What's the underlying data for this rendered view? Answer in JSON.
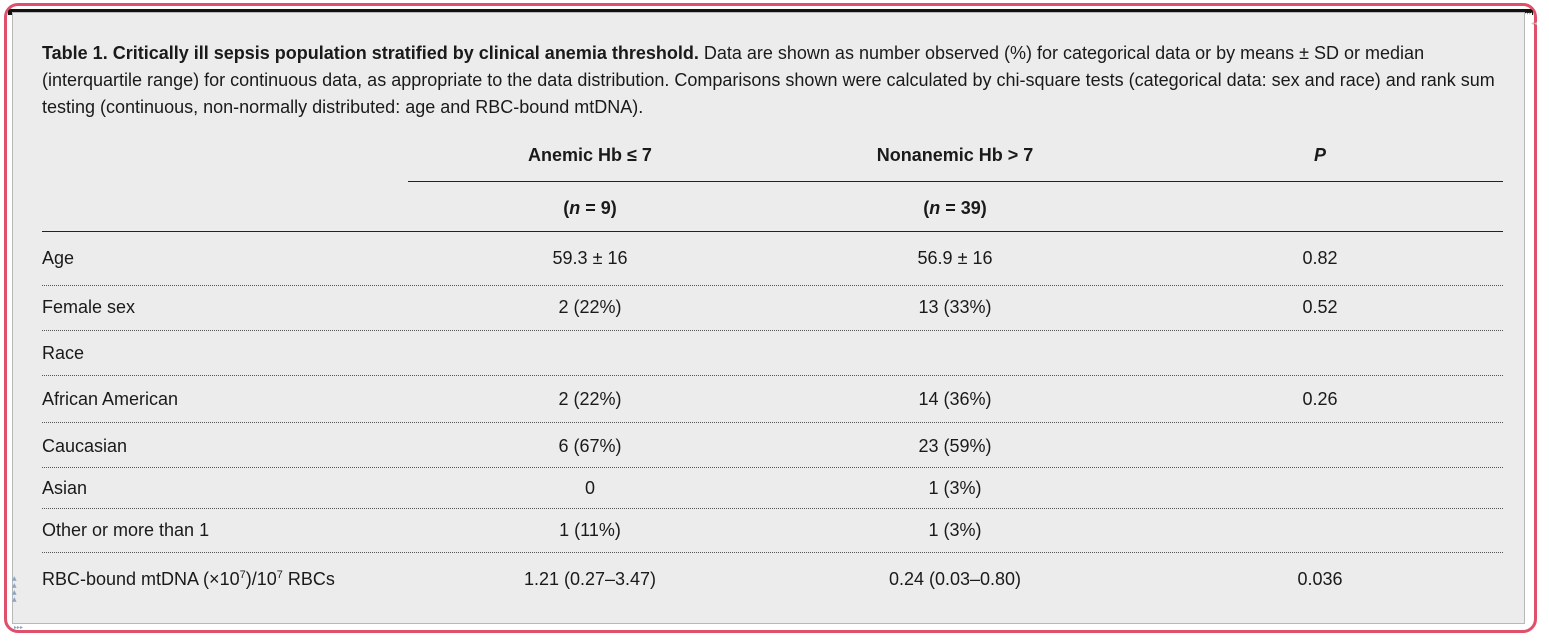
{
  "caption": {
    "title": "Table 1. Critically ill sepsis population stratified by clinical anemia threshold.",
    "body": "Data are shown as number observed (%) for categorical data or by means ± SD or median (interquartile range) for continuous data, as appropriate to the data distribution. Comparisons shown were calculated by chi-square tests (categorical data: sex and race) and rank sum testing (continuous, non-normally distributed: age and RBC-bound mtDNA)."
  },
  "headers": {
    "anemic": "Anemic Hb ≤ 7",
    "nonanemic": "Nonanemic Hb > 7",
    "p": "P",
    "anemic_n_label": "n",
    "anemic_n_value": " = 9)",
    "nonanemic_n_label": "n",
    "nonanemic_n_value": " = 39)",
    "paren_open": "("
  },
  "rows": [
    {
      "label": "Age",
      "anemic": "59.3 ± 16",
      "nonanemic": "56.9 ± 16",
      "p": "0.82"
    },
    {
      "label": "Female sex",
      "anemic": "2 (22%)",
      "nonanemic": "13 (33%)",
      "p": "0.52"
    },
    {
      "label": "Race",
      "anemic": "",
      "nonanemic": "",
      "p": ""
    },
    {
      "label": "African American",
      "anemic": "2 (22%)",
      "nonanemic": "14 (36%)",
      "p": "0.26"
    },
    {
      "label": "Caucasian",
      "anemic": "6 (67%)",
      "nonanemic": "23 (59%)",
      "p": ""
    },
    {
      "label": "Asian",
      "anemic": "0",
      "nonanemic": "1 (3%)",
      "p": ""
    },
    {
      "label": "Other or more than 1",
      "anemic": "1 (11%)",
      "nonanemic": "1 (3%)",
      "p": ""
    },
    {
      "label_pre": "RBC-bound mtDNA (×10",
      "label_sup1": "7",
      "label_mid": ")/10",
      "label_sup2": "7",
      "label_post": " RBCs",
      "anemic": "1.21 (0.27–3.47)",
      "nonanemic": "0.24 (0.03–0.80)",
      "p": "0.036"
    }
  ],
  "decor": {
    "corner": "◂◂◂",
    "side": "▲▲▲▲",
    "bottom": "▸▸▸",
    "right": "◂◂"
  },
  "colors": {
    "frame": "#e0506a",
    "panel": "#ececec",
    "topbar": "#111111"
  }
}
